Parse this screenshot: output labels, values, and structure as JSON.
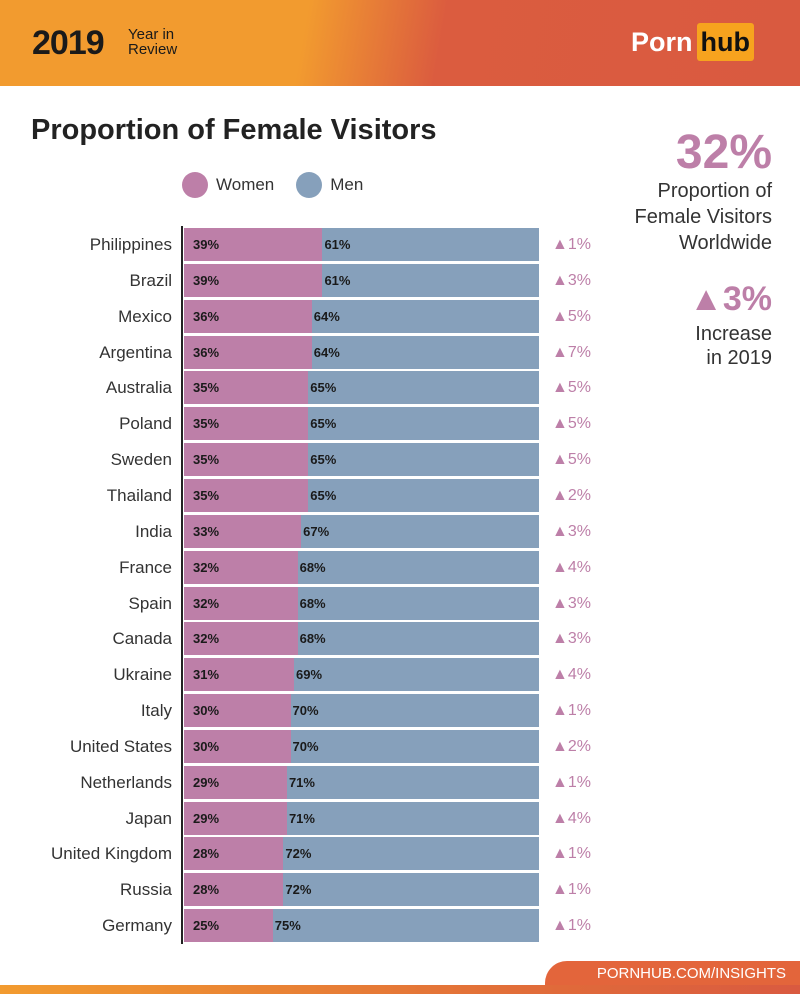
{
  "header": {
    "year": "2019",
    "subtitle_line1": "Year in",
    "subtitle_line2": "Review",
    "logo_part1": "Porn",
    "logo_part2": "hub"
  },
  "colors": {
    "women": "#bd7fa8",
    "men": "#86a0bb",
    "change": "#bd7fa8"
  },
  "summary": {
    "value": "32%",
    "label_lines": [
      "Proportion of",
      "Female Visitors",
      "Worldwide"
    ],
    "increase": "3%",
    "increase_lines": [
      "Increase",
      "in 2019"
    ]
  },
  "footer": {
    "text": "PORNHUB.COM/INSIGHTS"
  },
  "chart_data": {
    "type": "bar",
    "orientation": "horizontal-stacked-100",
    "title": "Proportion of Female Visitors",
    "legend": [
      "Women",
      "Men"
    ],
    "legend_placement": "top",
    "categories": [
      "Philippines",
      "Brazil",
      "Mexico",
      "Argentina",
      "Australia",
      "Poland",
      "Sweden",
      "Thailand",
      "India",
      "France",
      "Spain",
      "Canada",
      "Ukraine",
      "Italy",
      "United States",
      "Netherlands",
      "Japan",
      "United Kingdom",
      "Russia",
      "Germany"
    ],
    "series": [
      {
        "name": "Women",
        "values": [
          39,
          39,
          36,
          36,
          35,
          35,
          35,
          35,
          33,
          32,
          32,
          32,
          31,
          30,
          30,
          29,
          29,
          28,
          28,
          25
        ]
      },
      {
        "name": "Men",
        "values": [
          61,
          61,
          64,
          64,
          65,
          65,
          65,
          65,
          67,
          68,
          68,
          68,
          69,
          70,
          70,
          71,
          71,
          72,
          72,
          75
        ]
      }
    ],
    "change_2019": [
      1,
      3,
      5,
      7,
      5,
      5,
      5,
      2,
      3,
      4,
      3,
      3,
      4,
      1,
      2,
      1,
      4,
      1,
      1,
      1
    ],
    "unit": "%"
  }
}
